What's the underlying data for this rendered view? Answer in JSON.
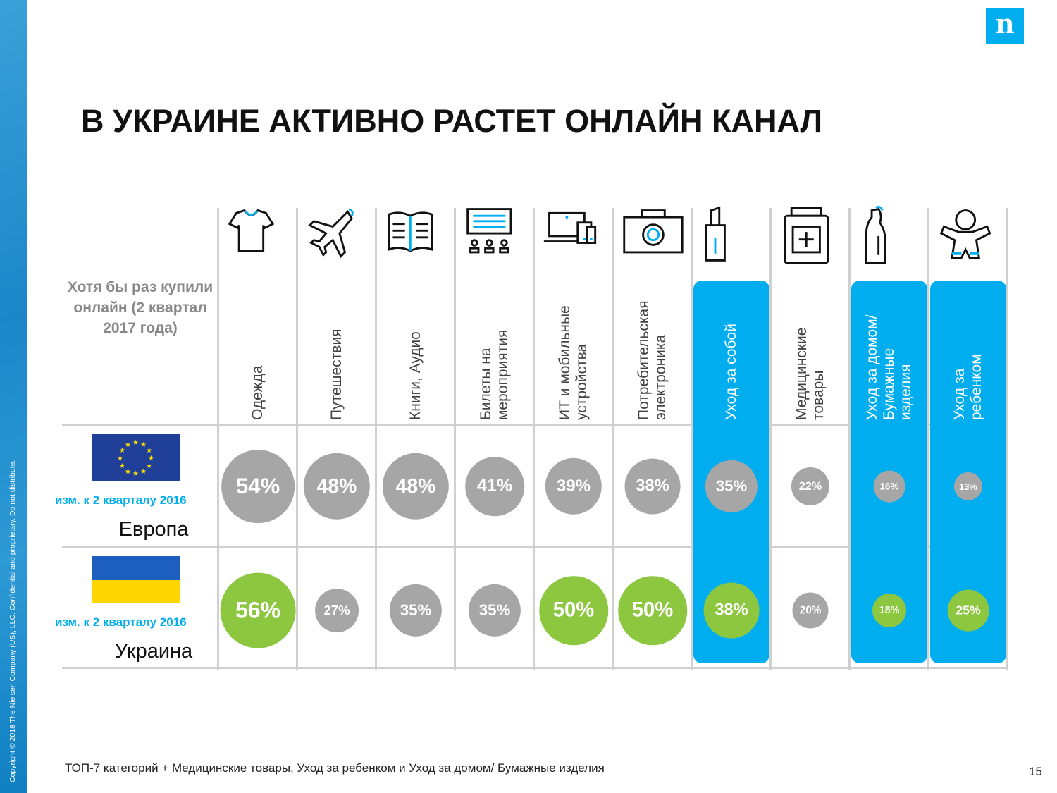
{
  "copyright": "Copyright © 2018 The Nielsen Company (US), LLC. Confidential and proprietary. Do not distribute.",
  "logo": "n",
  "title": "В УКРАИНЕ АКТИВНО РАСТЕТ ОНЛАЙН КАНАЛ",
  "note": "Хотя бы раз купили онлайн (2 квартал 2017 года)",
  "categories": [
    {
      "label": "Одежда",
      "icon": "tshirt-icon",
      "highlight": false
    },
    {
      "label": "Путешествия",
      "icon": "airplane-icon",
      "highlight": false
    },
    {
      "label": "Книги, Аудио",
      "icon": "book-icon",
      "highlight": false
    },
    {
      "label": "Билеты на\nмероприятия",
      "icon": "event-tickets-icon",
      "highlight": false
    },
    {
      "label": "ИТ и мобильные\nустройства",
      "icon": "devices-icon",
      "highlight": false
    },
    {
      "label": "Потребительская\nэлектроника",
      "icon": "camera-icon",
      "highlight": false
    },
    {
      "label": "Уход за собой",
      "icon": "lipstick-icon",
      "highlight": true
    },
    {
      "label": "Медицинские\nтовары",
      "icon": "medicine-jar-icon",
      "highlight": false
    },
    {
      "label": "Уход за домом/\nБумажные\nизделия",
      "icon": "cleaner-bottle-icon",
      "highlight": true
    },
    {
      "label": "Уход за\nребенком",
      "icon": "baby-icon",
      "highlight": true
    }
  ],
  "rows": [
    {
      "region": "Европа",
      "change_label": "изм. к 2 кварталу 2016",
      "flag": "eu-flag",
      "values": [
        54,
        48,
        48,
        41,
        39,
        38,
        35,
        22,
        16,
        13
      ],
      "growth": [
        false,
        false,
        false,
        false,
        false,
        false,
        false,
        false,
        false,
        false
      ]
    },
    {
      "region": "Украина",
      "change_label": "изм. к 2 кварталу 2016",
      "flag": "ukraine-flag",
      "values": [
        56,
        27,
        35,
        35,
        50,
        50,
        38,
        20,
        18,
        25
      ],
      "growth": [
        true,
        false,
        false,
        false,
        true,
        true,
        true,
        false,
        true,
        true
      ]
    }
  ],
  "colors": {
    "gray": "#a6a6a6",
    "green": "#8dc63f",
    "blue": "#00aeef"
  },
  "footnote": "ТОП-7 категорий + Медицинские товары, Уход за ребенком и Уход за домом/ Бумажные изделия",
  "page_number": "15"
}
